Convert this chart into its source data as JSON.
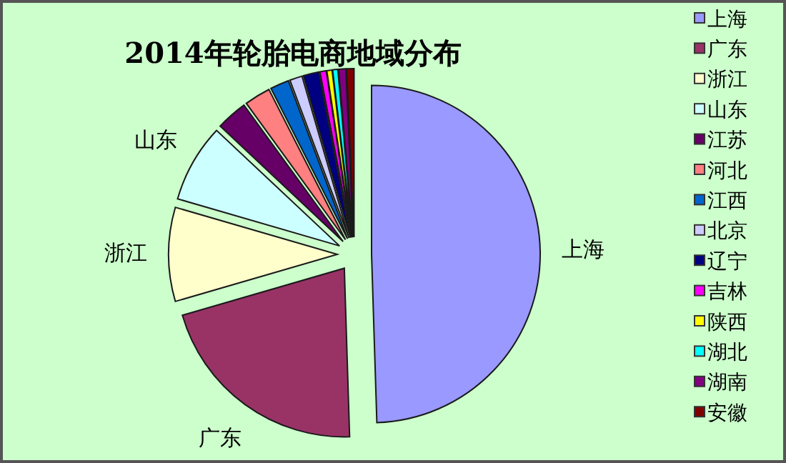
{
  "chart_data": {
    "type": "pie",
    "title": "2014年轮胎电商地域分布",
    "categories": [
      "上海",
      "广东",
      "浙江",
      "山东",
      "江苏",
      "河北",
      "江西",
      "北京",
      "辽宁",
      "吉林",
      "陕西",
      "湖北",
      "湖南",
      "安徽"
    ],
    "values": [
      49.5,
      21,
      9,
      7.5,
      3,
      2.5,
      1.8,
      1.2,
      1.5,
      0.6,
      0.5,
      0.5,
      0.7,
      0.7
    ],
    "colors": [
      "#9999ff",
      "#993366",
      "#ffffcc",
      "#ccffff",
      "#660066",
      "#ff8080",
      "#0066cc",
      "#ccccff",
      "#000080",
      "#ff00ff",
      "#ffff00",
      "#00ffff",
      "#800080",
      "#800000"
    ],
    "legend": "right"
  }
}
